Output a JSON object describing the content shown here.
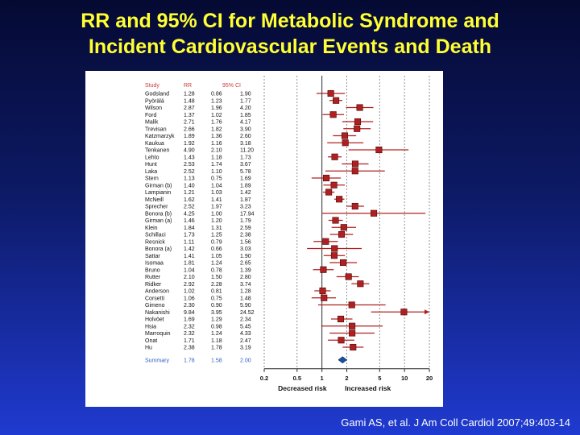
{
  "slide": {
    "title_line1": "RR and 95% CI for Metabolic Syndrome and",
    "title_line2": "Incident Cardiovascular Events and Death",
    "citation": "Gami AS, et al. J Am Coll Cardiol 2007;49:403-14"
  },
  "chart_data": {
    "type": "forest",
    "header": {
      "study": "Study",
      "rr": "RR",
      "ci": "95% CI"
    },
    "x_scale": "log",
    "xlim": [
      0.2,
      20
    ],
    "x_ticks": [
      "0.2",
      "0.5",
      "1",
      "2",
      "5",
      "10",
      "20"
    ],
    "x_ticks_major": [
      "0.2",
      "0.5",
      "1",
      "2",
      "5",
      "10",
      "20"
    ],
    "xtick_labels": {
      "0.2": "0.2",
      "0.5": "0.5",
      "1": "1",
      "2": "2",
      "5": "5",
      "10": "10",
      "20": "20"
    },
    "xlabels": {
      "left": "Decreased risk",
      "right": "Increased risk"
    },
    "grid": "vertical dashed",
    "colors": {
      "marker": "#b02020",
      "line": "#b02020",
      "summary": "#1f4e9a",
      "header_text": "#cc3b3b",
      "summary_text": "#3060c0"
    },
    "studies": [
      {
        "study": "Godsland",
        "rr": "1.28",
        "lo": "0.86",
        "hi": "1.90"
      },
      {
        "study": "Pyörälä",
        "rr": "1.48",
        "lo": "1.23",
        "hi": "1.77"
      },
      {
        "study": "Wilson",
        "rr": "2.87",
        "lo": "1.96",
        "hi": "4.20"
      },
      {
        "study": "Ford",
        "rr": "1.37",
        "lo": "1.02",
        "hi": "1.85"
      },
      {
        "study": "Malik",
        "rr": "2.71",
        "lo": "1.76",
        "hi": "4.17"
      },
      {
        "study": "Trevisan",
        "rr": "2.66",
        "lo": "1.82",
        "hi": "3.90"
      },
      {
        "study": "Katzmarzyk",
        "rr": "1.89",
        "lo": "1.36",
        "hi": "2.60"
      },
      {
        "study": "Kaukua",
        "rr": "1.92",
        "lo": "1.16",
        "hi": "3.18"
      },
      {
        "study": "Tenkanen",
        "rr": "4.90",
        "lo": "2.10",
        "hi": "11.20"
      },
      {
        "study": "Lehto",
        "rr": "1.43",
        "lo": "1.18",
        "hi": "1.73"
      },
      {
        "study": "Hunt",
        "rr": "2.53",
        "lo": "1.74",
        "hi": "3.67"
      },
      {
        "study": "Laka",
        "rr": "2.52",
        "lo": "1.10",
        "hi": "5.78"
      },
      {
        "study": "Stern",
        "rr": "1.13",
        "lo": "0.75",
        "hi": "1.69"
      },
      {
        "study": "Girman (b)",
        "rr": "1.40",
        "lo": "1.04",
        "hi": "1.89"
      },
      {
        "study": "Lampianin",
        "rr": "1.21",
        "lo": "1.03",
        "hi": "1.42"
      },
      {
        "study": "McNeill",
        "rr": "1.62",
        "lo": "1.41",
        "hi": "1.87"
      },
      {
        "study": "Sprecher",
        "rr": "2.52",
        "lo": "1.97",
        "hi": "3.23"
      },
      {
        "study": "Bonora (b)",
        "rr": "4.25",
        "lo": "1.00",
        "hi": "17.94"
      },
      {
        "study": "Girman (a)",
        "rr": "1.46",
        "lo": "1.20",
        "hi": "1.79"
      },
      {
        "study": "Klein",
        "rr": "1.84",
        "lo": "1.31",
        "hi": "2.59"
      },
      {
        "study": "Schillaci",
        "rr": "1.73",
        "lo": "1.25",
        "hi": "2.38"
      },
      {
        "study": "Resnick",
        "rr": "1.11",
        "lo": "0.79",
        "hi": "1.56"
      },
      {
        "study": "Bonora (a)",
        "rr": "1.42",
        "lo": "0.66",
        "hi": "3.03"
      },
      {
        "study": "Sattar",
        "rr": "1.41",
        "lo": "1.05",
        "hi": "1.90"
      },
      {
        "study": "Isomaa",
        "rr": "1.81",
        "lo": "1.24",
        "hi": "2.65"
      },
      {
        "study": "Bruno",
        "rr": "1.04",
        "lo": "0.78",
        "hi": "1.39"
      },
      {
        "study": "Rutter",
        "rr": "2.10",
        "lo": "1.50",
        "hi": "2.80"
      },
      {
        "study": "Ridker",
        "rr": "2.92",
        "lo": "2.28",
        "hi": "3.74"
      },
      {
        "study": "Anderson",
        "rr": "1.02",
        "lo": "0.81",
        "hi": "1.28"
      },
      {
        "study": "Corsetti",
        "rr": "1.06",
        "lo": "0.75",
        "hi": "1.48"
      },
      {
        "study": "Gimeno",
        "rr": "2.30",
        "lo": "0.90",
        "hi": "5.90"
      },
      {
        "study": "Nakanishi",
        "rr": "9.84",
        "lo": "3.95",
        "hi": "24.52"
      },
      {
        "study": "Holvöet",
        "rr": "1.69",
        "lo": "1.29",
        "hi": "2.34"
      },
      {
        "study": "Hsia",
        "rr": "2.32",
        "lo": "0.98",
        "hi": "5.45"
      },
      {
        "study": "Marroquin",
        "rr": "2.32",
        "lo": "1.24",
        "hi": "4.33"
      },
      {
        "study": "Onat",
        "rr": "1.71",
        "lo": "1.18",
        "hi": "2.47"
      },
      {
        "study": "Hu",
        "rr": "2.38",
        "lo": "1.78",
        "hi": "3.19"
      }
    ],
    "summary": {
      "study": "Summary",
      "rr": "1.78",
      "lo": "1.58",
      "hi": "2.00"
    }
  }
}
